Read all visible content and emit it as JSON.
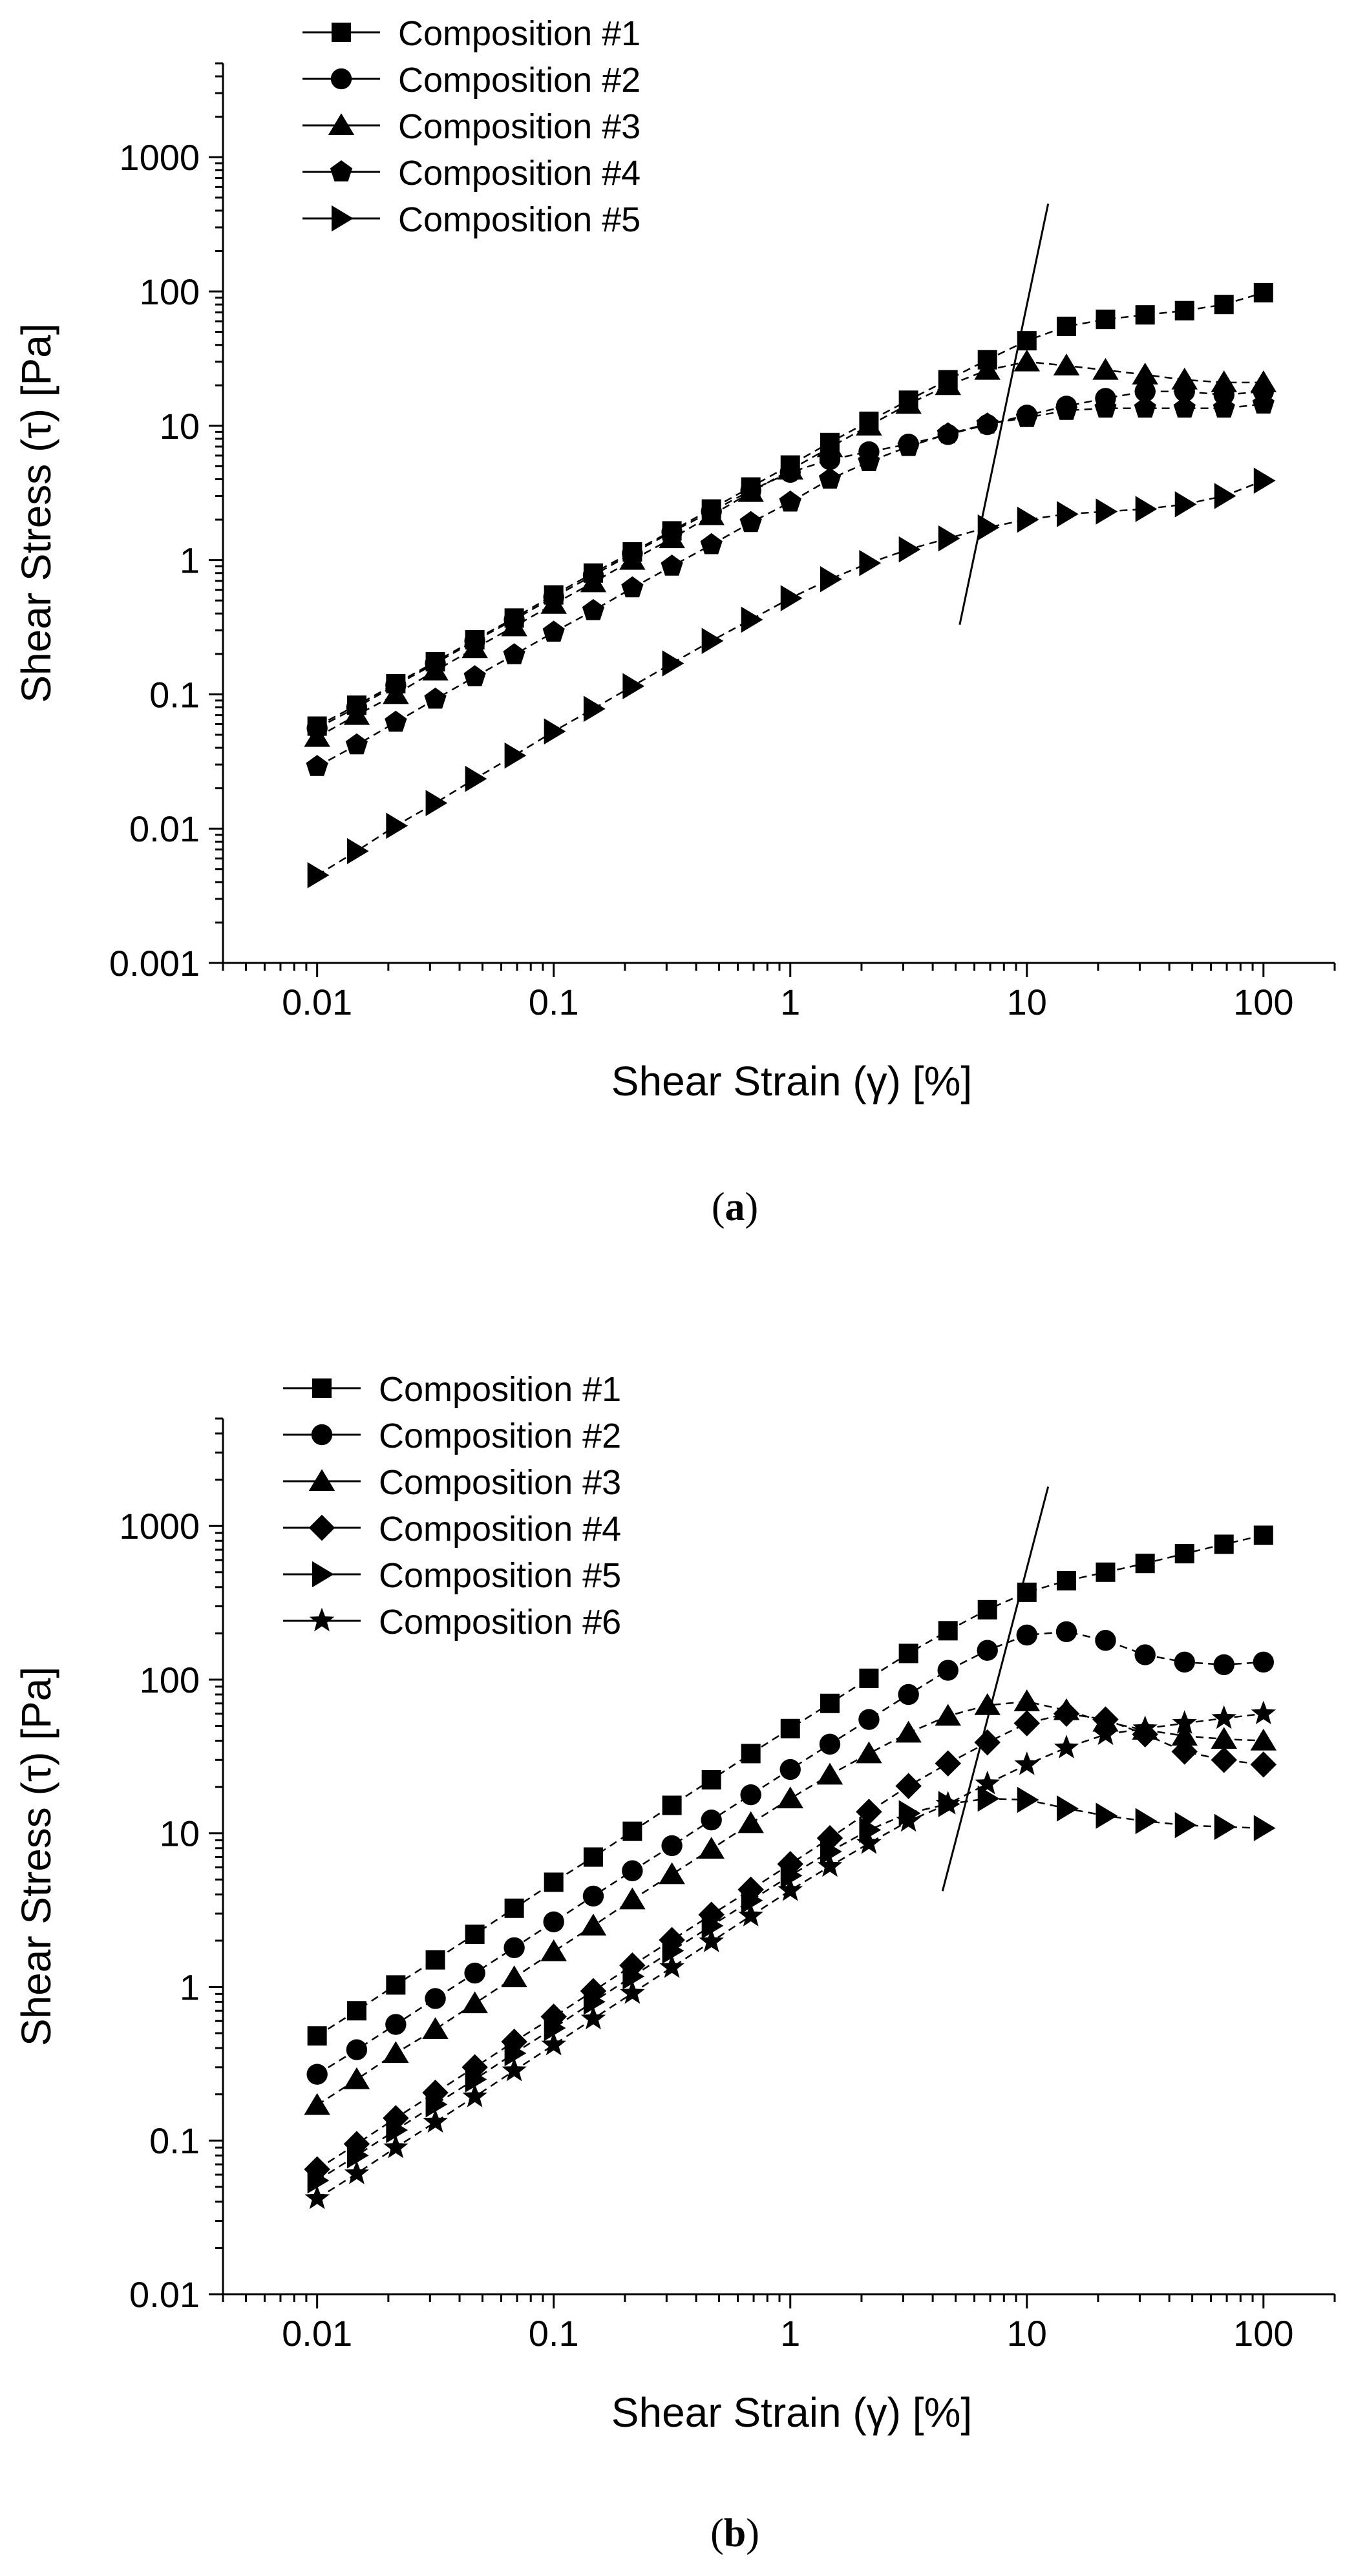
{
  "figure": {
    "caption_a_letter": "a",
    "caption_b_letter": "b"
  },
  "chart_data": [
    {
      "type": "scatter",
      "panel": "a",
      "xscale": "log",
      "yscale": "log",
      "xlabel": "Shear Strain (γ) [%]",
      "ylabel": "Shear Stress (τ) [Pa]",
      "xlim": [
        0.004,
        200
      ],
      "ylim": [
        0.001,
        5000
      ],
      "xticks": [
        0.01,
        0.1,
        1,
        10,
        100
      ],
      "xtick_labels": [
        "0.01",
        "0.1",
        "1",
        "10",
        "100"
      ],
      "yticks": [
        0.001,
        0.01,
        0.1,
        1,
        10,
        100,
        1000
      ],
      "ytick_labels": [
        "0.001",
        "0.01",
        "0.1",
        "1",
        "10",
        "100",
        "1000"
      ],
      "legend_position": "top-left",
      "x": [
        0.01,
        0.0147,
        0.0215,
        0.0316,
        0.0464,
        0.0681,
        0.1,
        0.147,
        0.215,
        0.316,
        0.464,
        0.681,
        1,
        1.47,
        2.15,
        3.16,
        4.64,
        6.81,
        10,
        14.7,
        21.5,
        31.6,
        46.4,
        68.1,
        100
      ],
      "series": [
        {
          "name": "Composition #1",
          "marker": "square",
          "values": [
            0.058,
            0.083,
            0.12,
            0.175,
            0.255,
            0.37,
            0.55,
            0.8,
            1.15,
            1.65,
            2.4,
            3.5,
            5.1,
            7.5,
            10.8,
            15.5,
            22,
            31,
            43,
            55,
            62,
            67,
            72,
            80,
            98
          ]
        },
        {
          "name": "Composition #2",
          "marker": "circle",
          "values": [
            0.056,
            0.08,
            0.117,
            0.17,
            0.25,
            0.36,
            0.53,
            0.77,
            1.12,
            1.62,
            2.3,
            3.3,
            4.5,
            5.6,
            6.4,
            7.3,
            8.6,
            10.2,
            12,
            14,
            16,
            18,
            18,
            17,
            18
          ]
        },
        {
          "name": "Composition #3",
          "marker": "triangle-up",
          "values": [
            0.048,
            0.07,
            0.1,
            0.15,
            0.22,
            0.32,
            0.47,
            0.68,
            1,
            1.45,
            2.15,
            3.2,
            4.7,
            6.9,
            10,
            14.5,
            20,
            26,
            30,
            28,
            26,
            24,
            22,
            21,
            21
          ]
        },
        {
          "name": "Composition #4",
          "marker": "pentagon",
          "values": [
            0.029,
            0.042,
            0.062,
            0.092,
            0.135,
            0.197,
            0.29,
            0.42,
            0.62,
            0.9,
            1.3,
            1.9,
            2.7,
            4,
            5.4,
            7,
            8.7,
            10.3,
            11.5,
            13,
            13.5,
            13.5,
            13.5,
            13.5,
            14.5
          ]
        },
        {
          "name": "Composition #5",
          "marker": "triangle-right",
          "values": [
            0.0045,
            0.0068,
            0.0105,
            0.0155,
            0.0235,
            0.035,
            0.053,
            0.078,
            0.115,
            0.17,
            0.25,
            0.36,
            0.52,
            0.72,
            0.95,
            1.2,
            1.45,
            1.75,
            2.0,
            2.2,
            2.3,
            2.4,
            2.6,
            3.0,
            3.9
          ]
        }
      ],
      "annotation_line": {
        "x": [
          5.2,
          12.3
        ],
        "y": [
          0.33,
          450
        ]
      }
    },
    {
      "type": "scatter",
      "panel": "b",
      "xscale": "log",
      "yscale": "log",
      "xlabel": "Shear Strain (γ) [%]",
      "ylabel": "Shear Stress (τ) [Pa]",
      "xlim": [
        0.004,
        200
      ],
      "ylim": [
        0.01,
        5000
      ],
      "xticks": [
        0.01,
        0.1,
        1,
        10,
        100
      ],
      "xtick_labels": [
        "0.01",
        "0.1",
        "1",
        "10",
        "100"
      ],
      "yticks": [
        0.01,
        0.1,
        1,
        10,
        100,
        1000
      ],
      "ytick_labels": [
        "0.01",
        "0.1",
        "1",
        "10",
        "100",
        "1000"
      ],
      "legend_position": "top-left",
      "x": [
        0.01,
        0.0147,
        0.0215,
        0.0316,
        0.0464,
        0.0681,
        0.1,
        0.147,
        0.215,
        0.316,
        0.464,
        0.681,
        1,
        1.47,
        2.15,
        3.16,
        4.64,
        6.81,
        10,
        14.7,
        21.5,
        31.6,
        46.4,
        68.1,
        100
      ],
      "series": [
        {
          "name": "Composition #1",
          "marker": "square",
          "values": [
            0.48,
            0.7,
            1.03,
            1.5,
            2.2,
            3.25,
            4.8,
            7.0,
            10.3,
            15.2,
            22.3,
            33,
            48,
            70,
            102,
            148,
            208,
            285,
            370,
            440,
            500,
            570,
            660,
            760,
            870
          ]
        },
        {
          "name": "Composition #2",
          "marker": "circle",
          "values": [
            0.27,
            0.39,
            0.57,
            0.84,
            1.23,
            1.8,
            2.65,
            3.9,
            5.7,
            8.3,
            12.2,
            17.8,
            26,
            38,
            55,
            80,
            115,
            155,
            195,
            205,
            180,
            145,
            130,
            125,
            130
          ]
        },
        {
          "name": "Composition #3",
          "marker": "triangle-up",
          "values": [
            0.17,
            0.25,
            0.37,
            0.53,
            0.78,
            1.15,
            1.7,
            2.5,
            3.7,
            5.4,
            7.9,
            11.6,
            16.8,
            24,
            33,
            45,
            58,
            68,
            72,
            63,
            53,
            47,
            43,
            41,
            40
          ]
        },
        {
          "name": "Composition #4",
          "marker": "diamond",
          "values": [
            0.065,
            0.095,
            0.14,
            0.205,
            0.3,
            0.44,
            0.64,
            0.94,
            1.38,
            2.02,
            2.95,
            4.3,
            6.3,
            9.3,
            13.8,
            20.3,
            28.5,
            39,
            52,
            60,
            55,
            44,
            34,
            30,
            28
          ]
        },
        {
          "name": "Composition #5",
          "marker": "triangle-right",
          "values": [
            0.055,
            0.08,
            0.117,
            0.172,
            0.25,
            0.37,
            0.54,
            0.8,
            1.17,
            1.72,
            2.5,
            3.65,
            5.3,
            7.6,
            10.5,
            13.5,
            15.5,
            16.8,
            16.5,
            14.5,
            13,
            12,
            11.3,
            11,
            10.8
          ]
        },
        {
          "name": "Composition #6",
          "marker": "star",
          "values": [
            0.042,
            0.061,
            0.09,
            0.132,
            0.193,
            0.285,
            0.42,
            0.62,
            0.91,
            1.34,
            1.97,
            2.9,
            4.25,
            6.1,
            8.6,
            12,
            15.5,
            21,
            28,
            36,
            44,
            48,
            52,
            56,
            60
          ]
        }
      ],
      "annotation_line": {
        "x": [
          4.4,
          12.3
        ],
        "y": [
          4.2,
          1800
        ]
      }
    }
  ]
}
